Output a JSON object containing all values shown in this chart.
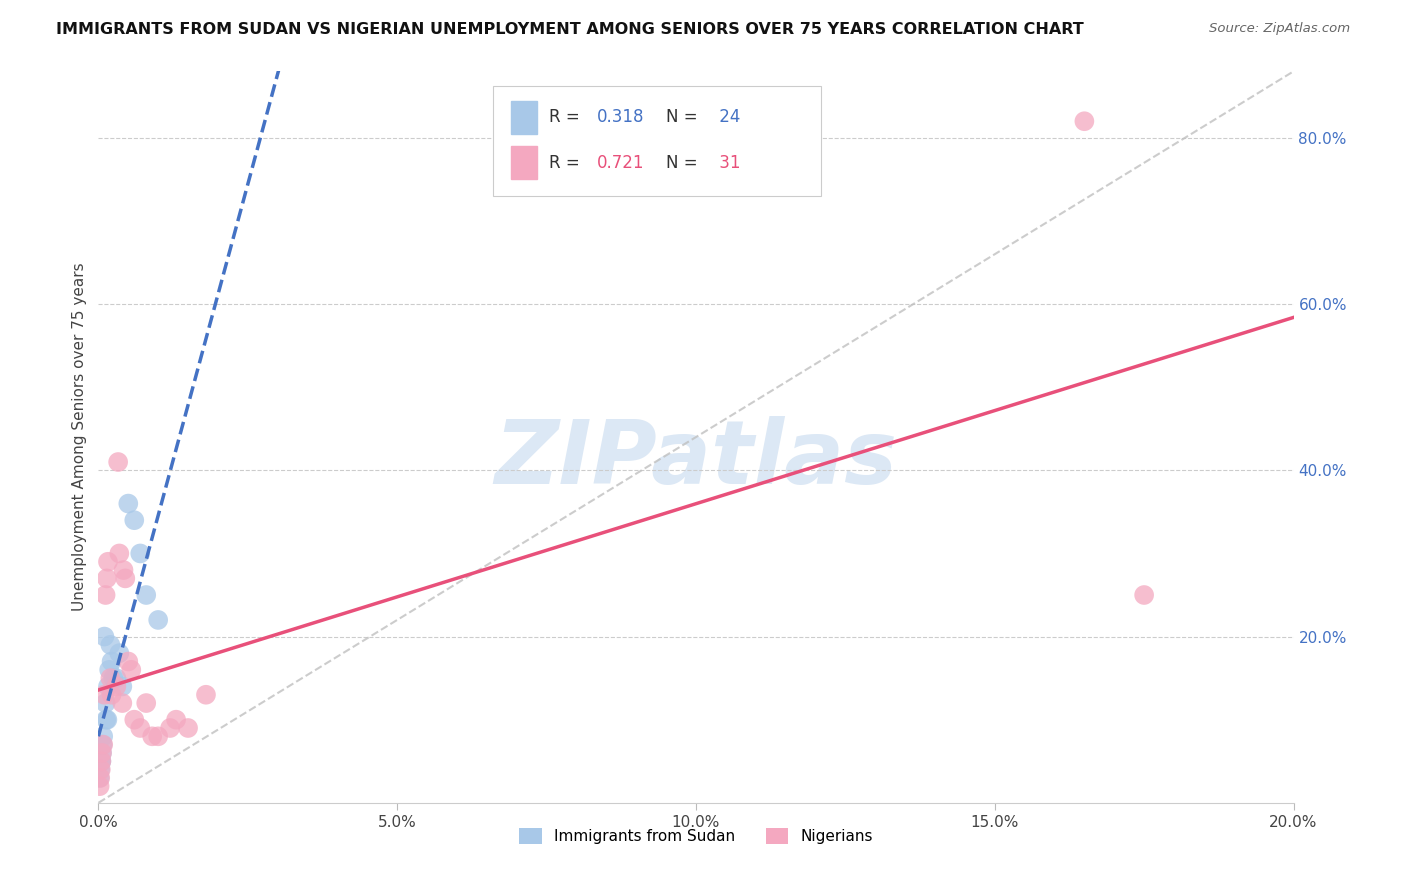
{
  "title": "IMMIGRANTS FROM SUDAN VS NIGERIAN UNEMPLOYMENT AMONG SENIORS OVER 75 YEARS CORRELATION CHART",
  "source": "Source: ZipAtlas.com",
  "ylabel": "Unemployment Among Seniors over 75 years",
  "legend_label1": "Immigrants from Sudan",
  "legend_label2": "Nigerians",
  "R1": 0.318,
  "N1": 24,
  "R2": 0.721,
  "N2": 31,
  "sudan_x": [
    0.0002,
    0.0003,
    0.0004,
    0.0005,
    0.0006,
    0.0007,
    0.0008,
    0.001,
    0.0012,
    0.0013,
    0.0015,
    0.0016,
    0.0018,
    0.002,
    0.0022,
    0.0025,
    0.003,
    0.0035,
    0.004,
    0.005,
    0.006,
    0.007,
    0.008,
    0.01
  ],
  "sudan_y": [
    0.03,
    0.04,
    0.05,
    0.05,
    0.06,
    0.07,
    0.08,
    0.2,
    0.12,
    0.1,
    0.1,
    0.14,
    0.16,
    0.19,
    0.17,
    0.15,
    0.15,
    0.18,
    0.14,
    0.36,
    0.34,
    0.3,
    0.25,
    0.22
  ],
  "nigeria_x": [
    0.0002,
    0.0003,
    0.0004,
    0.0005,
    0.0006,
    0.0008,
    0.001,
    0.0012,
    0.0014,
    0.0016,
    0.002,
    0.0022,
    0.003,
    0.0033,
    0.0035,
    0.004,
    0.0042,
    0.0045,
    0.005,
    0.0055,
    0.006,
    0.007,
    0.008,
    0.009,
    0.01,
    0.012,
    0.013,
    0.015,
    0.018,
    0.165,
    0.175
  ],
  "nigeria_y": [
    0.02,
    0.03,
    0.04,
    0.05,
    0.06,
    0.07,
    0.13,
    0.25,
    0.27,
    0.29,
    0.15,
    0.13,
    0.14,
    0.41,
    0.3,
    0.12,
    0.28,
    0.27,
    0.17,
    0.16,
    0.1,
    0.09,
    0.12,
    0.08,
    0.08,
    0.09,
    0.1,
    0.09,
    0.13,
    0.82,
    0.25
  ],
  "sudan_color": "#a8c8e8",
  "nigeria_color": "#f4a8c0",
  "sudan_line_color": "#4472c4",
  "nigeria_line_color": "#e8507a",
  "ref_line_color": "#c0c0c0",
  "watermark_color": "#dce8f5",
  "background_color": "#ffffff",
  "xlim": [
    0.0,
    0.2
  ],
  "ylim": [
    0.0,
    0.88
  ],
  "right_yticks": [
    0.0,
    0.2,
    0.4,
    0.6,
    0.8
  ],
  "right_yticklabels": [
    "",
    "20.0%",
    "40.0%",
    "60.0%",
    "80.0%"
  ],
  "xticks": [
    0.0,
    0.05,
    0.1,
    0.15,
    0.2
  ],
  "xticklabels": [
    "0.0%",
    "5.0%",
    "10.0%",
    "15.0%",
    "20.0%"
  ],
  "marker_size": 200
}
